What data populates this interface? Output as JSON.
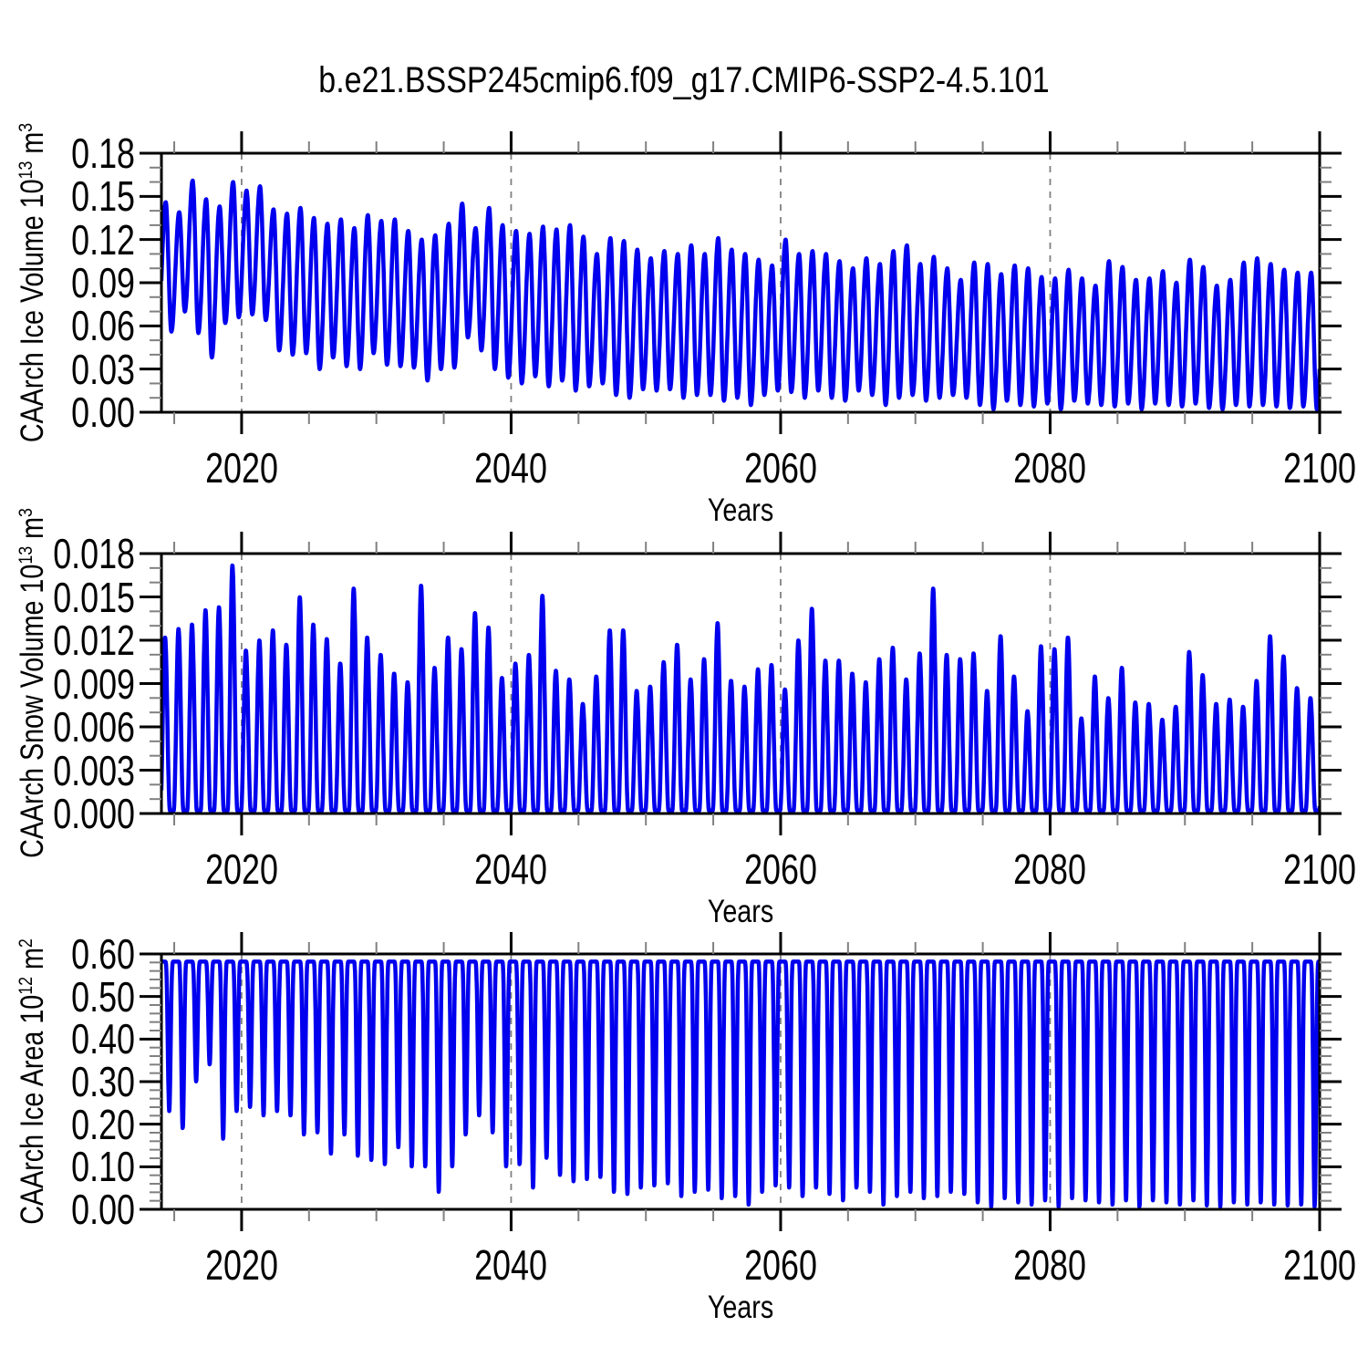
{
  "title": "b.e21.BSSP245cmip6.f09_g17.CMIP6-SSP2-4.5.101",
  "colors": {
    "line": "#0000EE",
    "frame": "#000000",
    "major_tick": "#000000",
    "minor_tick": "#808080",
    "gridline": "#808080",
    "background": "#FFFFFF",
    "text": "#000000"
  },
  "x_axis": {
    "label": "Years",
    "major_tick_labels": [
      "2020",
      "2040",
      "2060",
      "2080",
      "2100"
    ],
    "major_ticks": [
      2020,
      2040,
      2060,
      2080,
      2100
    ],
    "minor_step": 5,
    "range": [
      2014.05,
      2100
    ],
    "gridline_years": [
      2020,
      2040,
      2060,
      2080
    ],
    "gridline_style": "dashed"
  },
  "chart_data": [
    {
      "type": "line",
      "name": "caarch-ice-volume",
      "ylabel": "CAArch Ice Volume 10^13 m^3",
      "ylabel_parts": [
        {
          "t": "CAArch Ice Volume 10"
        },
        {
          "t": "13",
          "sup": true
        },
        {
          "t": " m"
        },
        {
          "t": "3",
          "sup": true
        }
      ],
      "xlabel": "Years",
      "ylim": [
        0,
        0.18
      ],
      "ytick_labels": [
        "0.00",
        "0.03",
        "0.06",
        "0.09",
        "0.12",
        "0.15",
        "0.18"
      ],
      "y_minor_step": 0.01,
      "start_year": 2014,
      "waveform": "seasonal",
      "peak_phase": 0.37,
      "trough_phase": 0.79,
      "annual_max": [
        0.146,
        0.139,
        0.161,
        0.148,
        0.143,
        0.16,
        0.154,
        0.157,
        0.141,
        0.138,
        0.142,
        0.135,
        0.131,
        0.134,
        0.128,
        0.137,
        0.133,
        0.134,
        0.126,
        0.12,
        0.123,
        0.131,
        0.145,
        0.128,
        0.142,
        0.13,
        0.126,
        0.124,
        0.129,
        0.127,
        0.13,
        0.122,
        0.11,
        0.121,
        0.119,
        0.113,
        0.107,
        0.112,
        0.11,
        0.116,
        0.11,
        0.121,
        0.113,
        0.11,
        0.106,
        0.102,
        0.12,
        0.11,
        0.112,
        0.11,
        0.105,
        0.1,
        0.107,
        0.103,
        0.112,
        0.116,
        0.103,
        0.108,
        0.1,
        0.092,
        0.104,
        0.103,
        0.096,
        0.102,
        0.1,
        0.094,
        0.093,
        0.099,
        0.093,
        0.088,
        0.105,
        0.101,
        0.092,
        0.093,
        0.098,
        0.09,
        0.106,
        0.101,
        0.088,
        0.092,
        0.104,
        0.107,
        0.103,
        0.099,
        0.097,
        0.097,
        0.1
      ],
      "annual_min": [
        0.056,
        0.07,
        0.055,
        0.038,
        0.062,
        0.066,
        0.068,
        0.064,
        0.043,
        0.04,
        0.041,
        0.03,
        0.038,
        0.032,
        0.03,
        0.041,
        0.033,
        0.032,
        0.031,
        0.022,
        0.03,
        0.031,
        0.052,
        0.043,
        0.03,
        0.024,
        0.02,
        0.025,
        0.018,
        0.022,
        0.015,
        0.018,
        0.02,
        0.012,
        0.01,
        0.016,
        0.015,
        0.016,
        0.01,
        0.012,
        0.012,
        0.008,
        0.01,
        0.005,
        0.012,
        0.015,
        0.014,
        0.01,
        0.015,
        0.01,
        0.008,
        0.015,
        0.012,
        0.005,
        0.01,
        0.012,
        0.008,
        0.01,
        0.012,
        0.01,
        0.005,
        0.002,
        0.008,
        0.005,
        0.004,
        0.006,
        0.002,
        0.008,
        0.006,
        0.005,
        0.004,
        0.006,
        0.002,
        0.006,
        0.005,
        0.004,
        0.006,
        0.003,
        0.002,
        0.005,
        0.004,
        0.005,
        0.004,
        0.003,
        0.004,
        0.002,
        0.004
      ]
    },
    {
      "type": "line",
      "name": "caarch-snow-volume",
      "ylabel": "CAArch Snow Volume 10^13 m^3",
      "ylabel_parts": [
        {
          "t": "CAArch Snow Volume 10"
        },
        {
          "t": "13",
          "sup": true
        },
        {
          "t": " m"
        },
        {
          "t": "3",
          "sup": true
        }
      ],
      "xlabel": "Years",
      "ylim": [
        0,
        0.018
      ],
      "ytick_labels": [
        "0.000",
        "0.003",
        "0.006",
        "0.009",
        "0.012",
        "0.015",
        "0.018"
      ],
      "y_minor_step": 0.001,
      "start_year": 2014,
      "waveform": "spike",
      "base": 0.0002,
      "peak_phase": 0.32,
      "half_width": 0.36,
      "exponent": 2.0,
      "annual_peak": [
        0.0122,
        0.0128,
        0.0131,
        0.0141,
        0.0143,
        0.0172,
        0.0113,
        0.012,
        0.0127,
        0.0117,
        0.015,
        0.0131,
        0.0121,
        0.0104,
        0.0156,
        0.0122,
        0.011,
        0.0097,
        0.0091,
        0.0158,
        0.0101,
        0.0122,
        0.0114,
        0.0139,
        0.0129,
        0.0094,
        0.0104,
        0.011,
        0.0151,
        0.0099,
        0.0093,
        0.0076,
        0.0095,
        0.0127,
        0.0127,
        0.0085,
        0.0088,
        0.0105,
        0.0117,
        0.0093,
        0.0107,
        0.0132,
        0.0092,
        0.0088,
        0.01,
        0.0103,
        0.0086,
        0.012,
        0.0142,
        0.0106,
        0.0106,
        0.0097,
        0.0091,
        0.0107,
        0.0115,
        0.0093,
        0.0111,
        0.0156,
        0.011,
        0.0107,
        0.0111,
        0.0085,
        0.0123,
        0.0095,
        0.0071,
        0.0116,
        0.0114,
        0.0122,
        0.0066,
        0.0095,
        0.008,
        0.0101,
        0.0077,
        0.0076,
        0.0065,
        0.0074,
        0.0112,
        0.0096,
        0.0076,
        0.0079,
        0.0074,
        0.0092,
        0.0123,
        0.0109,
        0.0087,
        0.008,
        0.011
      ]
    },
    {
      "type": "line",
      "name": "caarch-ice-area",
      "ylabel": "CAArch Ice Area 10^12 m^2",
      "ylabel_parts": [
        {
          "t": "CAArch Ice Area 10"
        },
        {
          "t": "12",
          "sup": true
        },
        {
          "t": " m"
        },
        {
          "t": "2",
          "sup": true
        }
      ],
      "xlabel": "Years",
      "ylim": [
        0,
        0.6
      ],
      "ytick_labels": [
        "0.00",
        "0.10",
        "0.20",
        "0.30",
        "0.40",
        "0.50",
        "0.60"
      ],
      "y_minor_step": 0.02,
      "start_year": 2014,
      "waveform": "dip",
      "top": 0.582,
      "dip_phase": 0.63,
      "half_width": 0.3,
      "exponent": 3.5,
      "annual_min": [
        0.23,
        0.19,
        0.3,
        0.34,
        0.165,
        0.23,
        0.24,
        0.22,
        0.23,
        0.22,
        0.175,
        0.18,
        0.13,
        0.175,
        0.125,
        0.115,
        0.105,
        0.145,
        0.1,
        0.1,
        0.04,
        0.1,
        0.175,
        0.22,
        0.18,
        0.1,
        0.105,
        0.05,
        0.12,
        0.08,
        0.065,
        0.07,
        0.075,
        0.04,
        0.035,
        0.05,
        0.055,
        0.06,
        0.03,
        0.04,
        0.045,
        0.025,
        0.03,
        0.01,
        0.04,
        0.055,
        0.05,
        0.03,
        0.05,
        0.035,
        0.02,
        0.05,
        0.04,
        0.01,
        0.03,
        0.04,
        0.025,
        0.03,
        0.04,
        0.035,
        0.015,
        0.005,
        0.025,
        0.015,
        0.01,
        0.02,
        0.005,
        0.025,
        0.02,
        0.015,
        0.01,
        0.02,
        0.005,
        0.02,
        0.015,
        0.01,
        0.02,
        0.008,
        0.005,
        0.015,
        0.01,
        0.015,
        0.01,
        0.008,
        0.01,
        0.005,
        0.01
      ]
    }
  ]
}
